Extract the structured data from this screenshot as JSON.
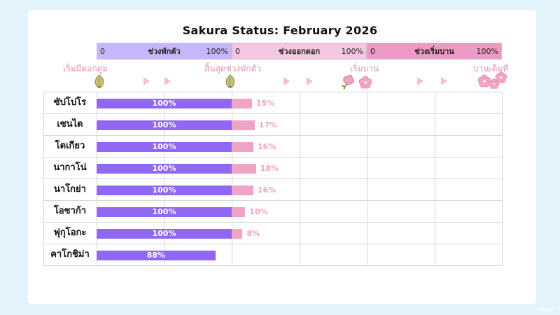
{
  "title": "Sakura Status: February 2026",
  "colors": {
    "dormant": "#8f67f2",
    "bloom": "#efa3c5",
    "stage1_bg": "#c7b7fa",
    "stage2_bg": "#f4c8e0",
    "stage3_bg": "#ec9ac4",
    "marker_text": "#e58fb8"
  },
  "stages": [
    {
      "label": "ช่วงพักตัว",
      "min": "0",
      "max": "100%"
    },
    {
      "label": "ช่วงออกดอก",
      "min": "0",
      "max": "100%"
    },
    {
      "label": "ช่วงเริ่มบาน",
      "min": "0",
      "max": "100%"
    }
  ],
  "markers": [
    {
      "label": "เริ่มมีดอกตูม",
      "icon": "bud-icon"
    },
    {
      "label": "สิ้นสุดช่วงพักตัว",
      "icon": "bud-icon"
    },
    {
      "label": "เริ่มบาน",
      "icon": "blossom-icon"
    },
    {
      "label": "บานเต็มที่",
      "icon": "full-bloom-icon"
    }
  ],
  "chart_data": {
    "type": "bar",
    "orientation": "horizontal",
    "categories": [
      "ซัปโปโร",
      "เซนได",
      "โตเกียว",
      "นากาโน่",
      "นาโกย่า",
      "โอซาก้า",
      "ฟุกุโอกะ",
      "คาโกชิม่า"
    ],
    "series": [
      {
        "name": "ช่วงพักตัว",
        "values": [
          100,
          100,
          100,
          100,
          100,
          100,
          100,
          88
        ],
        "labels": [
          "100%",
          "100%",
          "100%",
          "100%",
          "100%",
          "100%",
          "100%",
          "88%"
        ]
      },
      {
        "name": "ช่วงออกดอก",
        "values": [
          15,
          17,
          16,
          18,
          16,
          10,
          8,
          0
        ],
        "labels": [
          "15%",
          "17%",
          "16%",
          "18%",
          "16%",
          "10%",
          "8%",
          ""
        ]
      },
      {
        "name": "ช่วงเริ่มบาน",
        "values": [
          0,
          0,
          0,
          0,
          0,
          0,
          0,
          0
        ],
        "labels": [
          "",
          "",
          "",
          "",
          "",
          "",
          "",
          ""
        ]
      }
    ],
    "xlim": [
      0,
      300
    ],
    "grid": true,
    "unit": "%"
  }
}
